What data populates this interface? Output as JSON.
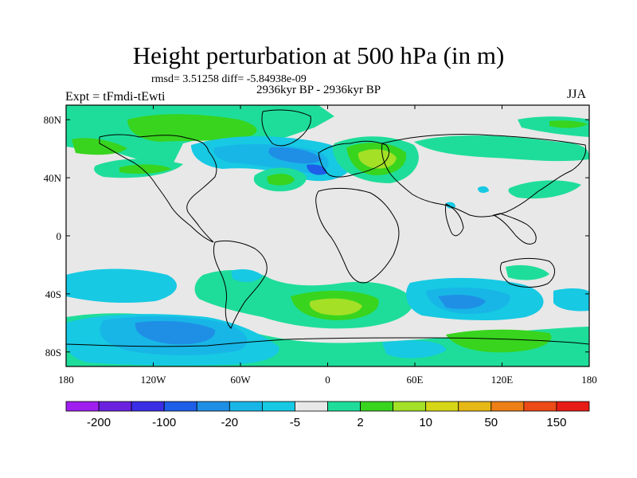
{
  "title": "Height perturbation at 500 hPa (in m)",
  "stats": "rmsd= 3.51258 diff= -5.84938e-09",
  "period": "2936kyr BP - 2936kyr BP",
  "expt": "Expt = tFmdi-tEwti",
  "season": "JJA",
  "map": {
    "lon_range": [
      -180,
      180
    ],
    "lat_range": [
      -90,
      90
    ],
    "background_color": "#e8e8e8",
    "x_ticks": [
      {
        "lon": -180,
        "label": "180"
      },
      {
        "lon": -120,
        "label": "120W"
      },
      {
        "lon": -60,
        "label": "60W"
      },
      {
        "lon": 0,
        "label": "0"
      },
      {
        "lon": 60,
        "label": "60E"
      },
      {
        "lon": 120,
        "label": "120E"
      },
      {
        "lon": 180,
        "label": "180"
      }
    ],
    "y_ticks": [
      {
        "lat": 80,
        "label": "80N"
      },
      {
        "lat": 40,
        "label": "40N"
      },
      {
        "lat": 0,
        "label": "0"
      },
      {
        "lat": -40,
        "label": "40S"
      },
      {
        "lat": -80,
        "label": "80S"
      }
    ]
  },
  "colorbar": {
    "colors": [
      "#9f1ff0",
      "#6a22e0",
      "#3b2ee6",
      "#1e5ee8",
      "#1f8fe6",
      "#18b6e6",
      "#17c9e3",
      "#e8e8e8",
      "#1edd9a",
      "#38d41e",
      "#a3e026",
      "#d6d616",
      "#e6b816",
      "#ec7f16",
      "#ec4a16",
      "#e81c16"
    ],
    "labels": [
      {
        "index": 1,
        "text": "-200"
      },
      {
        "index": 3,
        "text": "-100"
      },
      {
        "index": 5,
        "text": "-20"
      },
      {
        "index": 7,
        "text": "-5"
      },
      {
        "index": 9,
        "text": "2"
      },
      {
        "index": 11,
        "text": "10"
      },
      {
        "index": 13,
        "text": "50"
      },
      {
        "index": 15,
        "text": "150"
      }
    ]
  }
}
